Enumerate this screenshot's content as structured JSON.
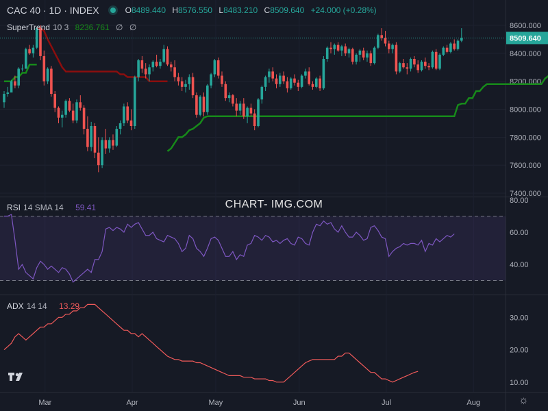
{
  "header": {
    "symbol": "CAC 40 · 1D · INDEX",
    "open_label": "O",
    "open": "8489.440",
    "high_label": "H",
    "high": "8576.550",
    "low_label": "L",
    "low": "8483.210",
    "close_label": "C",
    "close": "8509.640",
    "change": "+24.000 (+0.28%)"
  },
  "supertrend": {
    "name": "SuperTrend",
    "params": "10 3",
    "value": "8236.761",
    "icon1": "∅",
    "icon2": "∅"
  },
  "rsi": {
    "name": "RSI",
    "params": "14 SMA 14",
    "value": "59.41"
  },
  "adx": {
    "name": "ADX",
    "params": "14 14",
    "value": "13.29"
  },
  "watermark": "CHART- IMG.COM",
  "settings_icon": "gear-icon",
  "colors": {
    "up": "#26a69a",
    "down": "#ef5350",
    "trend_up": "#178a1a",
    "trend_down": "#8b0e0e",
    "rsi": "#7e57c2",
    "adx": "#f05a5a",
    "bg": "#161a25"
  },
  "chart_data": [
    {
      "type": "candlestick",
      "title": "CAC 40 · 1D · INDEX",
      "x_labels": [
        "Mar",
        "Apr",
        "May",
        "Jun",
        "Jul",
        "Aug"
      ],
      "y_ticks": [
        "8600.000",
        "8400.000",
        "8200.000",
        "8000.000",
        "7800.000",
        "7600.000",
        "7400.000"
      ],
      "ylim": [
        7400,
        8600
      ],
      "last_price": "8509.640",
      "candles": [
        [
          8050,
          8130,
          8010,
          8110
        ],
        [
          8110,
          8160,
          8090,
          8120
        ],
        [
          8120,
          8210,
          8120,
          8200
        ],
        [
          8200,
          8240,
          8150,
          8170
        ],
        [
          8170,
          8300,
          8150,
          8290
        ],
        [
          8290,
          8320,
          8270,
          8290
        ],
        [
          8290,
          8440,
          8290,
          8430
        ],
        [
          8430,
          8460,
          8390,
          8400
        ],
        [
          8400,
          8460,
          8370,
          8440
        ],
        [
          8440,
          8590,
          8430,
          8580
        ],
        [
          8580,
          8600,
          8350,
          8380
        ],
        [
          8380,
          8420,
          8170,
          8200
        ],
        [
          8200,
          8300,
          8180,
          8290
        ],
        [
          8290,
          8310,
          8090,
          8110
        ],
        [
          8110,
          8130,
          7980,
          8010
        ],
        [
          8010,
          8020,
          7900,
          7940
        ],
        [
          7940,
          7990,
          7870,
          7960
        ],
        [
          7960,
          8070,
          7940,
          8060
        ],
        [
          8060,
          8080,
          7980,
          7990
        ],
        [
          7990,
          8040,
          7900,
          7920
        ],
        [
          7920,
          8070,
          7900,
          8050
        ],
        [
          8050,
          8100,
          7990,
          8010
        ],
        [
          8010,
          8030,
          7820,
          7860
        ],
        [
          7860,
          7950,
          7700,
          7730
        ],
        [
          7730,
          7910,
          7700,
          7880
        ],
        [
          7880,
          7900,
          7650,
          7690
        ],
        [
          7690,
          7800,
          7550,
          7600
        ],
        [
          7600,
          7800,
          7580,
          7780
        ],
        [
          7780,
          7860,
          7680,
          7720
        ],
        [
          7720,
          7800,
          7690,
          7780
        ],
        [
          7780,
          7820,
          7710,
          7740
        ],
        [
          7740,
          7880,
          7730,
          7860
        ],
        [
          7860,
          7920,
          7820,
          7900
        ],
        [
          7900,
          8040,
          7880,
          8020
        ],
        [
          8020,
          8050,
          7900,
          7920
        ],
        [
          7920,
          8000,
          7850,
          7880
        ],
        [
          7880,
          8240,
          7860,
          8230
        ],
        [
          8230,
          8360,
          8200,
          8350
        ],
        [
          8350,
          8380,
          8260,
          8290
        ],
        [
          8290,
          8330,
          8220,
          8250
        ],
        [
          8250,
          8320,
          8200,
          8300
        ],
        [
          8300,
          8350,
          8270,
          8340
        ],
        [
          8340,
          8390,
          8300,
          8310
        ],
        [
          8310,
          8360,
          8290,
          8340
        ],
        [
          8340,
          8460,
          8330,
          8430
        ],
        [
          8430,
          8450,
          8310,
          8320
        ],
        [
          8320,
          8340,
          8270,
          8300
        ],
        [
          8300,
          8350,
          8200,
          8230
        ],
        [
          8230,
          8260,
          8170,
          8200
        ],
        [
          8200,
          8230,
          8130,
          8160
        ],
        [
          8160,
          8210,
          8120,
          8180
        ],
        [
          8180,
          8250,
          8140,
          8230
        ],
        [
          8230,
          8260,
          8080,
          8100
        ],
        [
          8100,
          8120,
          7940,
          7960
        ],
        [
          7960,
          8100,
          7950,
          8090
        ],
        [
          8090,
          8120,
          7950,
          7980
        ],
        [
          7980,
          8180,
          7960,
          8170
        ],
        [
          8170,
          8260,
          8150,
          8250
        ],
        [
          8250,
          8360,
          8230,
          8350
        ],
        [
          8350,
          8370,
          8220,
          8240
        ],
        [
          8240,
          8270,
          8160,
          8180
        ],
        [
          8180,
          8200,
          8060,
          8080
        ],
        [
          8080,
          8120,
          8050,
          8100
        ],
        [
          8100,
          8110,
          8020,
          8040
        ],
        [
          8040,
          8080,
          7950,
          7990
        ],
        [
          7990,
          8060,
          7960,
          8040
        ],
        [
          8040,
          8080,
          7930,
          7950
        ],
        [
          7950,
          8020,
          7900,
          8010
        ],
        [
          8010,
          8040,
          7950,
          7970
        ],
        [
          7970,
          8000,
          7850,
          7880
        ],
        [
          7880,
          8080,
          7870,
          8070
        ],
        [
          8070,
          8170,
          8040,
          8160
        ],
        [
          8160,
          8240,
          8130,
          8230
        ],
        [
          8230,
          8290,
          8190,
          8270
        ],
        [
          8270,
          8300,
          8200,
          8220
        ],
        [
          8220,
          8250,
          8150,
          8180
        ],
        [
          8180,
          8260,
          8160,
          8240
        ],
        [
          8240,
          8270,
          8180,
          8200
        ],
        [
          8200,
          8230,
          8120,
          8150
        ],
        [
          8150,
          8230,
          8140,
          8220
        ],
        [
          8220,
          8250,
          8170,
          8190
        ],
        [
          8190,
          8210,
          8130,
          8160
        ],
        [
          8160,
          8250,
          8150,
          8240
        ],
        [
          8240,
          8290,
          8220,
          8270
        ],
        [
          8270,
          8300,
          8170,
          8180
        ],
        [
          8180,
          8200,
          8140,
          8160
        ],
        [
          8160,
          8230,
          8150,
          8220
        ],
        [
          8220,
          8240,
          8130,
          8150
        ],
        [
          8150,
          8380,
          8140,
          8360
        ],
        [
          8360,
          8450,
          8340,
          8440
        ],
        [
          8440,
          8480,
          8400,
          8430
        ],
        [
          8430,
          8470,
          8390,
          8460
        ],
        [
          8460,
          8480,
          8410,
          8420
        ],
        [
          8420,
          8460,
          8380,
          8450
        ],
        [
          8450,
          8470,
          8380,
          8400
        ],
        [
          8400,
          8440,
          8370,
          8430
        ],
        [
          8430,
          8440,
          8320,
          8340
        ],
        [
          8340,
          8400,
          8320,
          8390
        ],
        [
          8390,
          8430,
          8340,
          8420
        ],
        [
          8420,
          8440,
          8350,
          8370
        ],
        [
          8370,
          8420,
          8340,
          8400
        ],
        [
          8400,
          8420,
          8310,
          8330
        ],
        [
          8330,
          8450,
          8320,
          8440
        ],
        [
          8440,
          8540,
          8430,
          8530
        ],
        [
          8530,
          8580,
          8490,
          8510
        ],
        [
          8510,
          8560,
          8450,
          8470
        ],
        [
          8470,
          8490,
          8400,
          8430
        ],
        [
          8430,
          8470,
          8400,
          8460
        ],
        [
          8460,
          8480,
          8250,
          8270
        ],
        [
          8270,
          8340,
          8260,
          8330
        ],
        [
          8330,
          8360,
          8290,
          8300
        ],
        [
          8300,
          8330,
          8250,
          8290
        ],
        [
          8290,
          8370,
          8270,
          8360
        ],
        [
          8360,
          8380,
          8300,
          8320
        ],
        [
          8320,
          8350,
          8260,
          8280
        ],
        [
          8280,
          8350,
          8270,
          8340
        ],
        [
          8340,
          8370,
          8290,
          8310
        ],
        [
          8310,
          8330,
          8280,
          8300
        ],
        [
          8300,
          8420,
          8290,
          8410
        ],
        [
          8410,
          8430,
          8280,
          8290
        ],
        [
          8290,
          8400,
          8280,
          8390
        ],
        [
          8390,
          8450,
          8380,
          8440
        ],
        [
          8440,
          8460,
          8400,
          8410
        ],
        [
          8410,
          8480,
          8400,
          8470
        ],
        [
          8470,
          8500,
          8420,
          8430
        ],
        [
          8430,
          8500,
          8420,
          8490
        ],
        [
          8490,
          8580,
          8480,
          8510
        ]
      ],
      "supertrend": [
        {
          "trend": "up",
          "values": [
            8200,
            8200,
            8200,
            8230,
            8230,
            8260,
            8260,
            8320,
            8320,
            8320
          ]
        },
        {
          "trend": "down",
          "values": [
            8580,
            8580,
            8560,
            8500,
            8450,
            8400,
            8350,
            8300,
            8270,
            8270,
            8270,
            8270,
            8270,
            8270,
            8270,
            8270,
            8270,
            8270,
            8270,
            8270,
            8270,
            8270,
            8270,
            8250,
            8250,
            8230,
            8230,
            8230,
            8230,
            8230,
            8230,
            8200,
            8200,
            8200,
            8200,
            8200,
            8200
          ]
        },
        {
          "trend": "up",
          "values": [
            7700,
            7720,
            7760,
            7800,
            7800,
            7820,
            7850,
            7860,
            7880,
            7900,
            7940,
            7950,
            7950,
            7950,
            7950,
            7950,
            7950,
            7950,
            7950,
            7950,
            7950,
            7950,
            7950,
            7950,
            7950,
            7950,
            7950,
            7950,
            7950,
            7950,
            7950,
            7950,
            7950,
            7950,
            7950,
            7950,
            7950,
            7950,
            7950,
            7950,
            7950,
            7950,
            7950,
            7950,
            7950,
            7950,
            7950,
            7950,
            7950,
            7950,
            7950,
            7950,
            7950,
            7950,
            7950,
            7950,
            7950,
            7950,
            7950,
            7950,
            7950,
            7950,
            7950,
            7950,
            7950,
            7950,
            7950,
            7950,
            7950,
            7950,
            7950,
            7950,
            7950,
            7950,
            7950,
            7950,
            7950,
            7950,
            7950,
            7950,
            8030,
            8040,
            8040,
            8080,
            8080,
            8130,
            8130,
            8160,
            8180,
            8180,
            8180,
            8180,
            8180,
            8180,
            8180,
            8180,
            8180,
            8180,
            8180,
            8180,
            8180,
            8180,
            8180,
            8180,
            8220,
            8240,
            8240,
            8240,
            8240,
            8240,
            8240,
            8240,
            8240,
            8240,
            8240,
            8240,
            8240,
            8240,
            8240,
            8240,
            8240,
            8240,
            8240,
            8240,
            8240,
            8240,
            8240,
            8240
          ]
        }
      ]
    },
    {
      "type": "line",
      "title": "RSI 14 SMA 14",
      "ylim": [
        20,
        80
      ],
      "y_ticks": [
        "80.00",
        "60.00",
        "40.00"
      ],
      "bands": [
        30,
        70
      ],
      "series": [
        {
          "name": "RSI",
          "values": [
            70,
            70,
            71,
            55,
            37,
            40,
            35,
            33,
            31,
            38,
            42,
            40,
            37,
            39,
            37,
            35,
            38,
            37,
            34,
            29,
            31,
            33,
            35,
            37,
            35,
            43,
            43,
            48,
            62,
            63,
            61,
            63,
            62,
            60,
            65,
            63,
            65,
            66,
            62,
            58,
            58,
            60,
            56,
            55,
            54,
            58,
            57,
            56,
            53,
            48,
            50,
            58,
            56,
            50,
            48,
            45,
            50,
            56,
            57,
            55,
            50,
            45,
            45,
            48,
            43,
            46,
            45,
            52,
            53,
            58,
            57,
            55,
            58,
            57,
            54,
            55,
            53,
            55,
            56,
            53,
            52,
            57,
            56,
            53,
            52,
            60,
            65,
            64,
            67,
            65,
            66,
            62,
            60,
            64,
            60,
            57,
            57,
            60,
            58,
            55,
            56,
            63,
            64,
            61,
            57,
            56,
            45,
            48,
            50,
            51,
            53,
            52,
            53,
            53,
            52,
            55,
            48,
            53,
            52,
            56,
            54,
            56,
            58,
            57,
            59
          ]
        }
      ]
    },
    {
      "type": "line",
      "title": "ADX 14 14",
      "ylim": [
        7,
        36
      ],
      "y_ticks": [
        "30.00",
        "20.00",
        "10.00"
      ],
      "series": [
        {
          "name": "ADX",
          "values": [
            20,
            21,
            22,
            24,
            25,
            24,
            23,
            24,
            25,
            26,
            27,
            27,
            28,
            28,
            29,
            30,
            30,
            31,
            31,
            32,
            32,
            33,
            33,
            34,
            34,
            34,
            33,
            32,
            31,
            30,
            29,
            28,
            27,
            26,
            26,
            25,
            25,
            24,
            25,
            24,
            23,
            22,
            21,
            20,
            19,
            18,
            17.5,
            17,
            17,
            16.5,
            16.5,
            16.5,
            16.5,
            16,
            16,
            15.5,
            15,
            14.5,
            14,
            13.5,
            13,
            12.5,
            12,
            12,
            12,
            12,
            11.5,
            11.5,
            11.5,
            11,
            11,
            11,
            11,
            10.5,
            10.5,
            10,
            10,
            10,
            11,
            12,
            13,
            14,
            15,
            16,
            16.5,
            17,
            17,
            17,
            17,
            17,
            17,
            17,
            18,
            18,
            19,
            19,
            18,
            17,
            16,
            15,
            14,
            13,
            13,
            12,
            11,
            11,
            10.5,
            10,
            10.5,
            11,
            11.5,
            12,
            12.5,
            13,
            13.3
          ]
        }
      ]
    }
  ]
}
